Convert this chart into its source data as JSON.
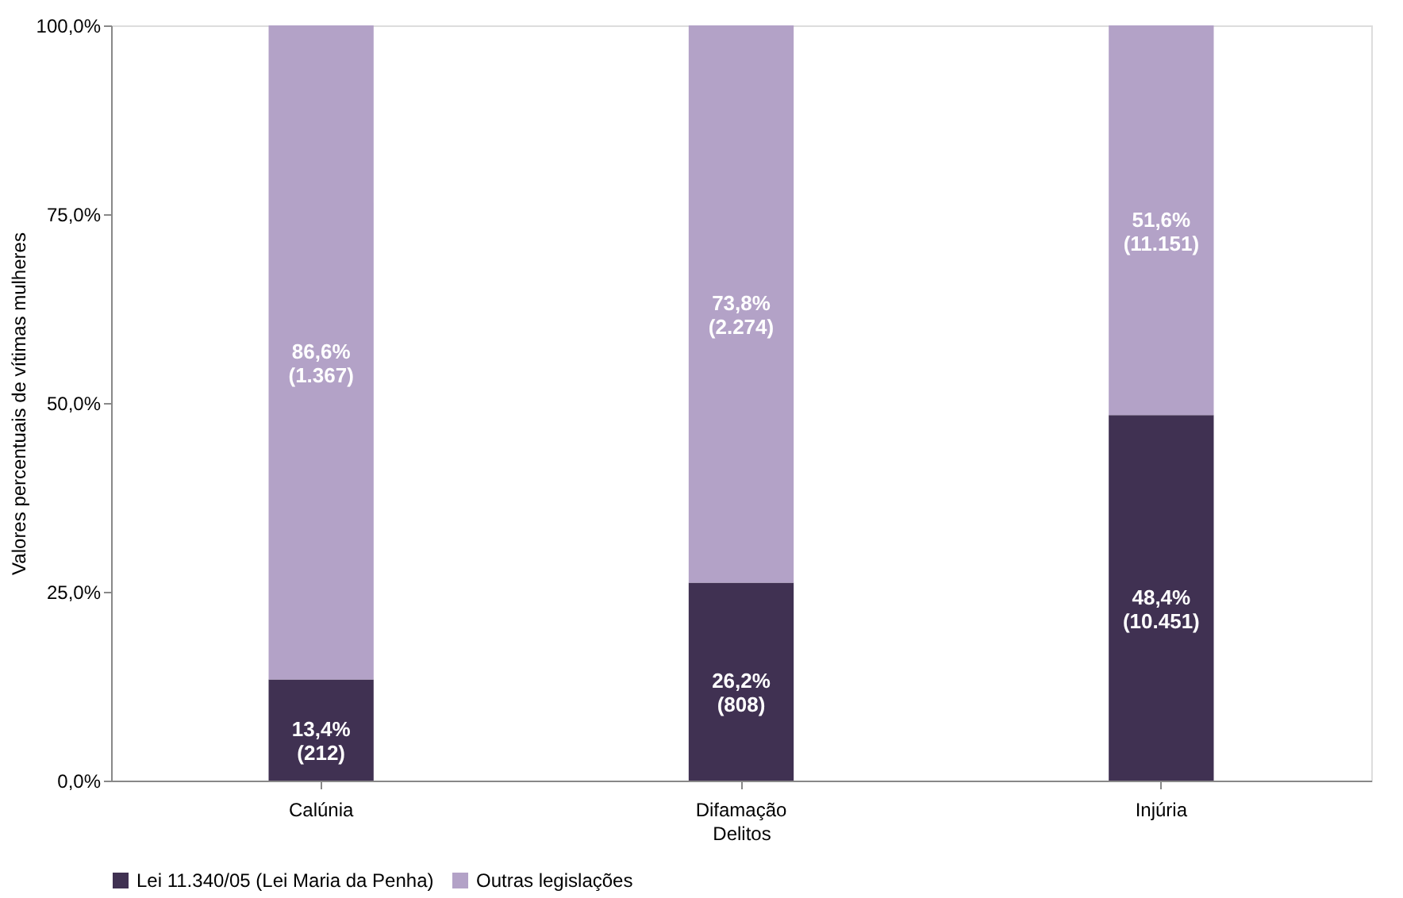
{
  "chart_data": {
    "type": "bar",
    "stacked": true,
    "xlabel": "Delitos",
    "ylabel": "Valores percentuais de vítimas mulheres",
    "categories": [
      "Calúnia",
      "Difamação",
      "Injúria"
    ],
    "series": [
      {
        "name": "Lei 11.340/05 (Lei Maria da Penha)",
        "color": "#403152",
        "values": [
          13.4,
          26.2,
          48.4
        ],
        "value_labels": [
          "13,4% (212)",
          "26,2% (808)",
          "48,4% (10.451)"
        ]
      },
      {
        "name": "Outras legislações",
        "color": "#b3a2c7",
        "values": [
          86.6,
          73.8,
          51.6
        ],
        "value_labels": [
          "86,6% (1.367)",
          "73,8% (2.274)",
          "51,6% (11.151)"
        ]
      }
    ],
    "ylim": [
      0,
      100
    ],
    "yticks": [
      {
        "value": 0,
        "label": "0,0%"
      },
      {
        "value": 25,
        "label": "25,0%"
      },
      {
        "value": 50,
        "label": "50,0%"
      },
      {
        "value": 75,
        "label": "75,0%"
      },
      {
        "value": 100,
        "label": "100,0%"
      }
    ],
    "grid": false,
    "legend": "bottom"
  }
}
